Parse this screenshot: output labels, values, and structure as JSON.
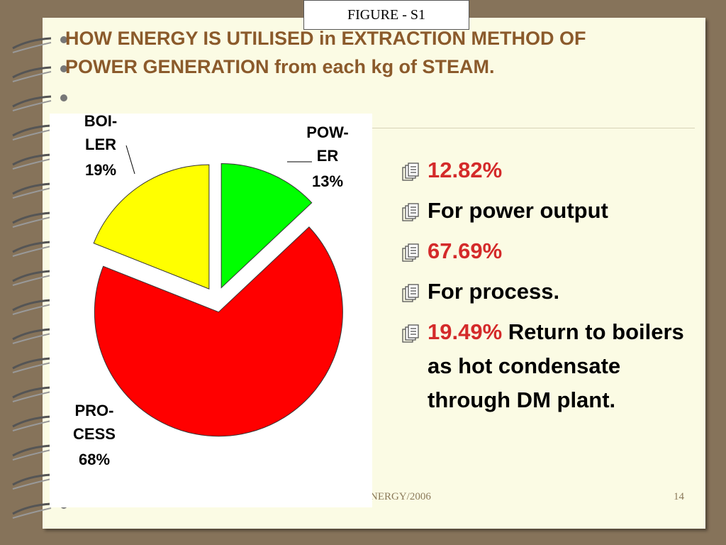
{
  "figure_label": "FIGURE - S1",
  "title": "HOW ENERGY IS UTILISED in EXTRACTION METHOD OF POWER GENERATION from each kg of STEAM.",
  "bullets": [
    [
      {
        "text": "12.82%",
        "color": "#d42a2a"
      }
    ],
    [
      {
        "text": "For power output",
        "color": "#000000"
      }
    ],
    [
      {
        "text": "67.69%",
        "color": "#d42a2a"
      }
    ],
    [
      {
        "text": "For process.",
        "color": "#000000"
      }
    ],
    [
      {
        "text": "19.49%",
        "color": "#d42a2a"
      },
      {
        "text": "Return to boilers as hot condensate through DM plant.",
        "color": "#000000"
      }
    ]
  ],
  "footer": "NERGY/2006",
  "page_number": "14",
  "chart_data": {
    "type": "pie",
    "categories": [
      [
        "POW-",
        "ER"
      ],
      [
        "PRO-",
        "CESS"
      ],
      [
        "BOI-",
        "LER"
      ]
    ],
    "values": [
      13,
      68,
      19
    ],
    "value_labels": [
      "13%",
      "68%",
      "19%"
    ],
    "colors": [
      "#00ff00",
      "#ff0000",
      "#ffff00"
    ]
  }
}
